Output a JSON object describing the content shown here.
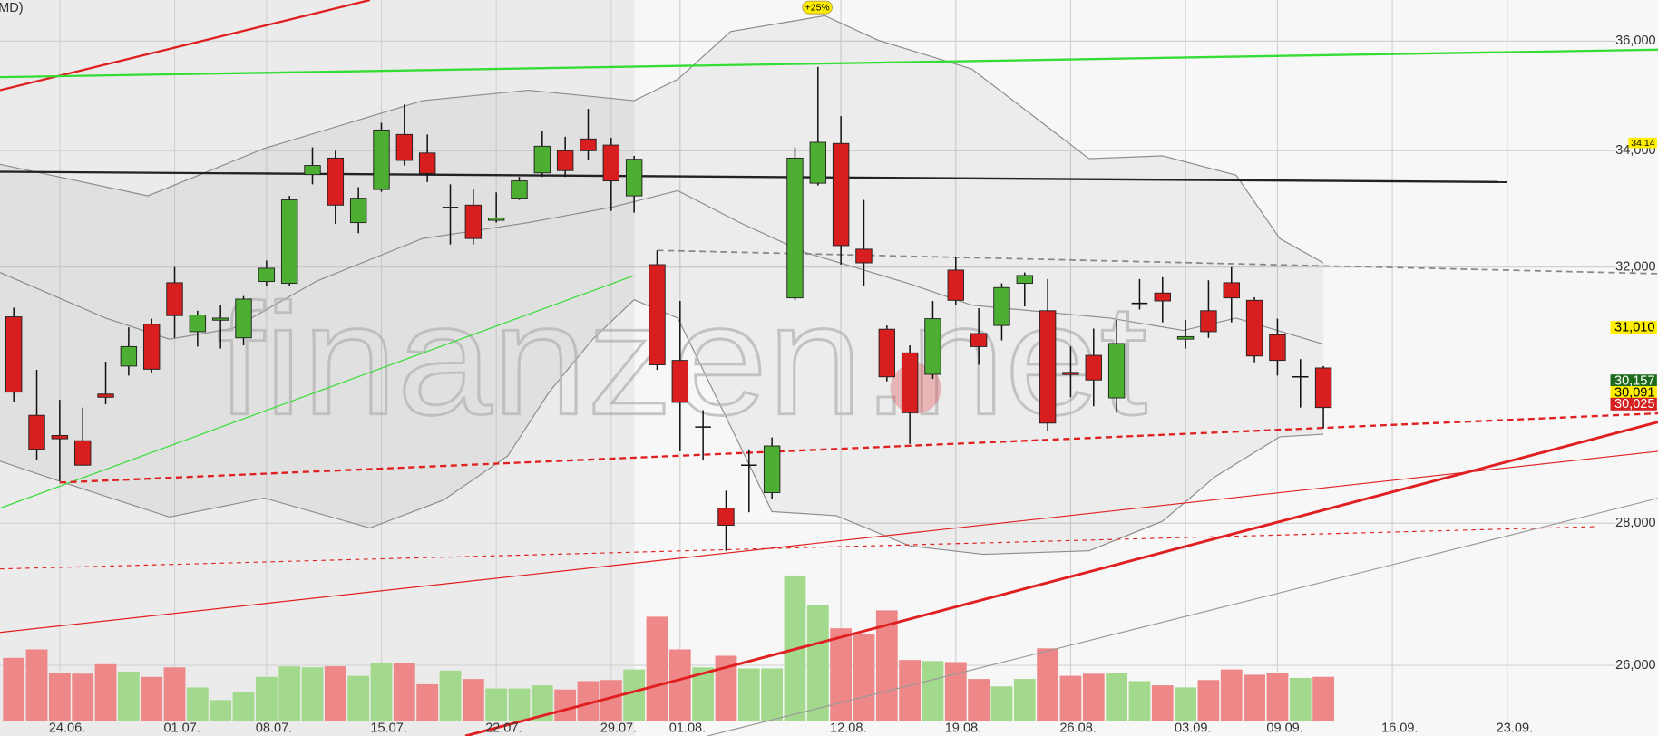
{
  "chart_data": {
    "type": "candlestick",
    "title": "MD)",
    "watermark": "finanzen.net",
    "log_scale": true,
    "grid": true,
    "ylim": [
      25060,
      36780
    ],
    "yticks": [
      {
        "value": 26000,
        "label": "26,000"
      },
      {
        "value": 28000,
        "label": "28,000"
      },
      {
        "value": 32000,
        "label": "32,000"
      },
      {
        "value": 34000,
        "label": "34,000"
      },
      {
        "value": 36000,
        "label": "36,000"
      }
    ],
    "categories": [
      null,
      null,
      "24.06.",
      null,
      null,
      null,
      null,
      "01.07.",
      null,
      null,
      null,
      "08.07.",
      null,
      null,
      null,
      null,
      "15.07.",
      null,
      null,
      null,
      null,
      "22.07.",
      null,
      null,
      null,
      null,
      "29.07.",
      null,
      null,
      "01.08.",
      null,
      null,
      null,
      null,
      null,
      null,
      "12.08.",
      null,
      null,
      null,
      null,
      "19.08.",
      null,
      null,
      null,
      null,
      "26.08.",
      null,
      null,
      null,
      null,
      "03.09.",
      null,
      null,
      null,
      "09.09.",
      null,
      null,
      null,
      null,
      "16.09.",
      null,
      null,
      null,
      null,
      "23.09.",
      null,
      null,
      null,
      null
    ],
    "open": [
      31180,
      29620,
      29310,
      29230,
      29950,
      30390,
      31060,
      31740,
      30940,
      31130,
      30840,
      31760,
      31730,
      33580,
      33870,
      32750,
      33320,
      34290,
      33960,
      33010,
      33050,
      32790,
      33170,
      33610,
      34000,
      34210,
      34100,
      33210,
      32040,
      30480,
      29440,
      28220,
      28860,
      28450,
      31490,
      33430,
      34130,
      32300,
      30980,
      30600,
      30260,
      31950,
      30910,
      31040,
      31730,
      31280,
      30290,
      30560,
      29890,
      31400,
      31570,
      30820,
      31280,
      31740,
      31450,
      30890,
      30220,
      30360,
      null,
      null,
      null,
      null,
      null,
      null,
      null,
      null,
      null,
      null,
      null,
      null
    ],
    "high": [
      31330,
      30330,
      29860,
      29740,
      30460,
      31010,
      31150,
      32000,
      31280,
      31380,
      31520,
      32110,
      33210,
      34060,
      34000,
      33360,
      34500,
      34830,
      34290,
      33410,
      33320,
      33270,
      33540,
      34350,
      34250,
      34750,
      34230,
      33910,
      32280,
      31440,
      29700,
      28480,
      29100,
      29280,
      34060,
      35520,
      34620,
      33140,
      31040,
      30720,
      31440,
      32170,
      31320,
      31730,
      31910,
      31800,
      30700,
      30990,
      31130,
      31800,
      31830,
      31130,
      31780,
      32000,
      31500,
      31150,
      30500,
      30390,
      null,
      null,
      null,
      null,
      null,
      null,
      null,
      null,
      null,
      null,
      null,
      null
    ],
    "low": [
      29820,
      28940,
      28620,
      28850,
      29790,
      30240,
      30290,
      30840,
      30700,
      30670,
      30720,
      31680,
      31690,
      33410,
      32730,
      32570,
      33280,
      33740,
      33450,
      32380,
      32380,
      32750,
      33140,
      33540,
      33540,
      33830,
      32950,
      32920,
      30330,
      29070,
      28930,
      27600,
      28160,
      28350,
      31450,
      33390,
      32040,
      31690,
      30150,
      29180,
      30190,
      31380,
      30410,
      30800,
      31350,
      29380,
      29900,
      29760,
      29660,
      31300,
      31090,
      30670,
      30840,
      31090,
      30450,
      30240,
      29740,
      29420,
      null,
      null,
      null,
      null,
      null,
      null,
      null,
      null,
      null,
      null,
      null,
      null
    ],
    "close": [
      29980,
      29100,
      29260,
      28860,
      29900,
      30700,
      30340,
      31200,
      31210,
      31160,
      31470,
      31980,
      33140,
      33740,
      33050,
      33170,
      34370,
      33830,
      33600,
      33010,
      32480,
      32830,
      33470,
      34080,
      33650,
      34000,
      33470,
      33850,
      30410,
      29820,
      29440,
      27970,
      28860,
      29150,
      33870,
      34150,
      32360,
      32070,
      30220,
      29660,
      31150,
      31450,
      30700,
      31660,
      31860,
      29500,
      30260,
      30170,
      30750,
      31400,
      31440,
      30860,
      30940,
      31490,
      30550,
      30480,
      30220,
      29740,
      null,
      null,
      null,
      null,
      null,
      null,
      null,
      null,
      null,
      null,
      null,
      null
    ],
    "volume": [
      60,
      68,
      46,
      45,
      54,
      47,
      42,
      51,
      32,
      20,
      28,
      42,
      52,
      51,
      52,
      43,
      55,
      55,
      35,
      48,
      40,
      31,
      31,
      34,
      30,
      38,
      39,
      49,
      99,
      68,
      51,
      62,
      50,
      50,
      138,
      110,
      88,
      83,
      105,
      58,
      57,
      56,
      40,
      33,
      40,
      69,
      43,
      45,
      46,
      38,
      34,
      32,
      39,
      49,
      44,
      46,
      41,
      42,
      null,
      null,
      null,
      null,
      null,
      null,
      null,
      null,
      null,
      null,
      null,
      null
    ],
    "up_color": "#4caf32",
    "down_color": "#d81e1e",
    "doji_color": "#111111",
    "volume_up_color": "#a3d98c",
    "volume_down_color": "#ee8888",
    "bands": {
      "color": "#8c8c8c",
      "fill": "#000000",
      "lines": [
        {
          "x": [
            -0.6,
            5.84,
            10.9,
            17.8,
            22.4,
            27.0,
            28.9,
            31.2,
            35.3,
            37.6,
            41.7,
            46.8,
            50.0,
            53.2,
            55.1,
            57.0
          ],
          "values": [
            33760,
            33210,
            34040,
            34900,
            35090,
            34900,
            35290,
            36180,
            36480,
            36020,
            35480,
            33860,
            33910,
            33570,
            32480,
            32070
          ]
        },
        {
          "x": [
            -0.6,
            4.0,
            6.77,
            9.53,
            13.2,
            17.8,
            22.4,
            26.1,
            28.9,
            31.6,
            34.4,
            39.0,
            41.7,
            47.7,
            50.9,
            53.2,
            57.0
          ],
          "values": [
            31910,
            31160,
            30820,
            30990,
            31770,
            32480,
            32750,
            33020,
            33300,
            32750,
            32250,
            31720,
            31370,
            31160,
            30960,
            31160,
            30740
          ]
        },
        {
          "x": [
            -0.6,
            2.16,
            6.77,
            10.9,
            15.5,
            18.7,
            21.5,
            23.3,
            25.2,
            27.0,
            28.9,
            31.6,
            33.0,
            35.8,
            39.0,
            42.2,
            46.8,
            50.0,
            52.3,
            55.1,
            57.0
          ],
          "values": [
            28920,
            28600,
            28090,
            28370,
            27930,
            28340,
            29000,
            29980,
            30820,
            31460,
            31160,
            29160,
            28170,
            28110,
            27670,
            27550,
            27600,
            28030,
            28690,
            29290,
            29330
          ]
        }
      ]
    },
    "trend_lines": [
      {
        "x": [
          -0.6,
          15.5
        ],
        "values": [
          35090,
          36780
        ],
        "color": "#e02020",
        "width": 2
      },
      {
        "x": [
          -0.6,
          71.6
        ],
        "values": [
          35330,
          35840
        ],
        "color": "#33dd33",
        "width": 2
      },
      {
        "x": [
          -0.6,
          65.0
        ],
        "values": [
          33630,
          33450
        ],
        "color": "#222222",
        "width": 2
      },
      {
        "x": [
          28.0,
          71.6
        ],
        "values": [
          32280,
          31890
        ],
        "color": "#888888",
        "width": 1.5,
        "dash": true
      },
      {
        "x": [
          -0.6,
          27.0
        ],
        "values": [
          28220,
          31860
        ],
        "color": "#33dd33",
        "width": 1
      },
      {
        "x": [
          2.0,
          71.6
        ],
        "values": [
          28600,
          29650
        ],
        "color": "#e02020",
        "width": 2,
        "dash": true
      },
      {
        "x": [
          -0.6,
          71.6
        ],
        "values": [
          26450,
          29070
        ],
        "color": "#e02020",
        "width": 1
      },
      {
        "x": [
          -0.6,
          68.9
        ],
        "values": [
          27340,
          27950
        ],
        "color": "#e02020",
        "width": 1,
        "dash": true
      },
      {
        "x": [
          19.65,
          71.6
        ],
        "values": [
          25060,
          29520
        ],
        "color": "#e02020",
        "width": 2.5
      },
      {
        "x": [
          30.2,
          71.6
        ],
        "values": [
          25060,
          28370
        ],
        "color": "#999999",
        "width": 1
      }
    ],
    "price_labels": [
      {
        "value": 34140,
        "label": "34.14",
        "color": "#ffee00",
        "text_color": "#000000",
        "small": true
      },
      {
        "value": 31010,
        "label": "31,010",
        "color": "#ffee00",
        "text_color": "#000000"
      },
      {
        "value": 30157,
        "label": "30,157",
        "color": "#1e6b1e",
        "text_color": "#ffffff"
      },
      {
        "value": 30091,
        "label": "30,091",
        "color": "#ffee00",
        "text_color": "#000000"
      },
      {
        "value": 30025,
        "label": "30,025",
        "color": "#d42020",
        "text_color": "#ffffff"
      }
    ],
    "events": [
      {
        "label": "+25%",
        "color": "#ffee00"
      }
    ]
  }
}
